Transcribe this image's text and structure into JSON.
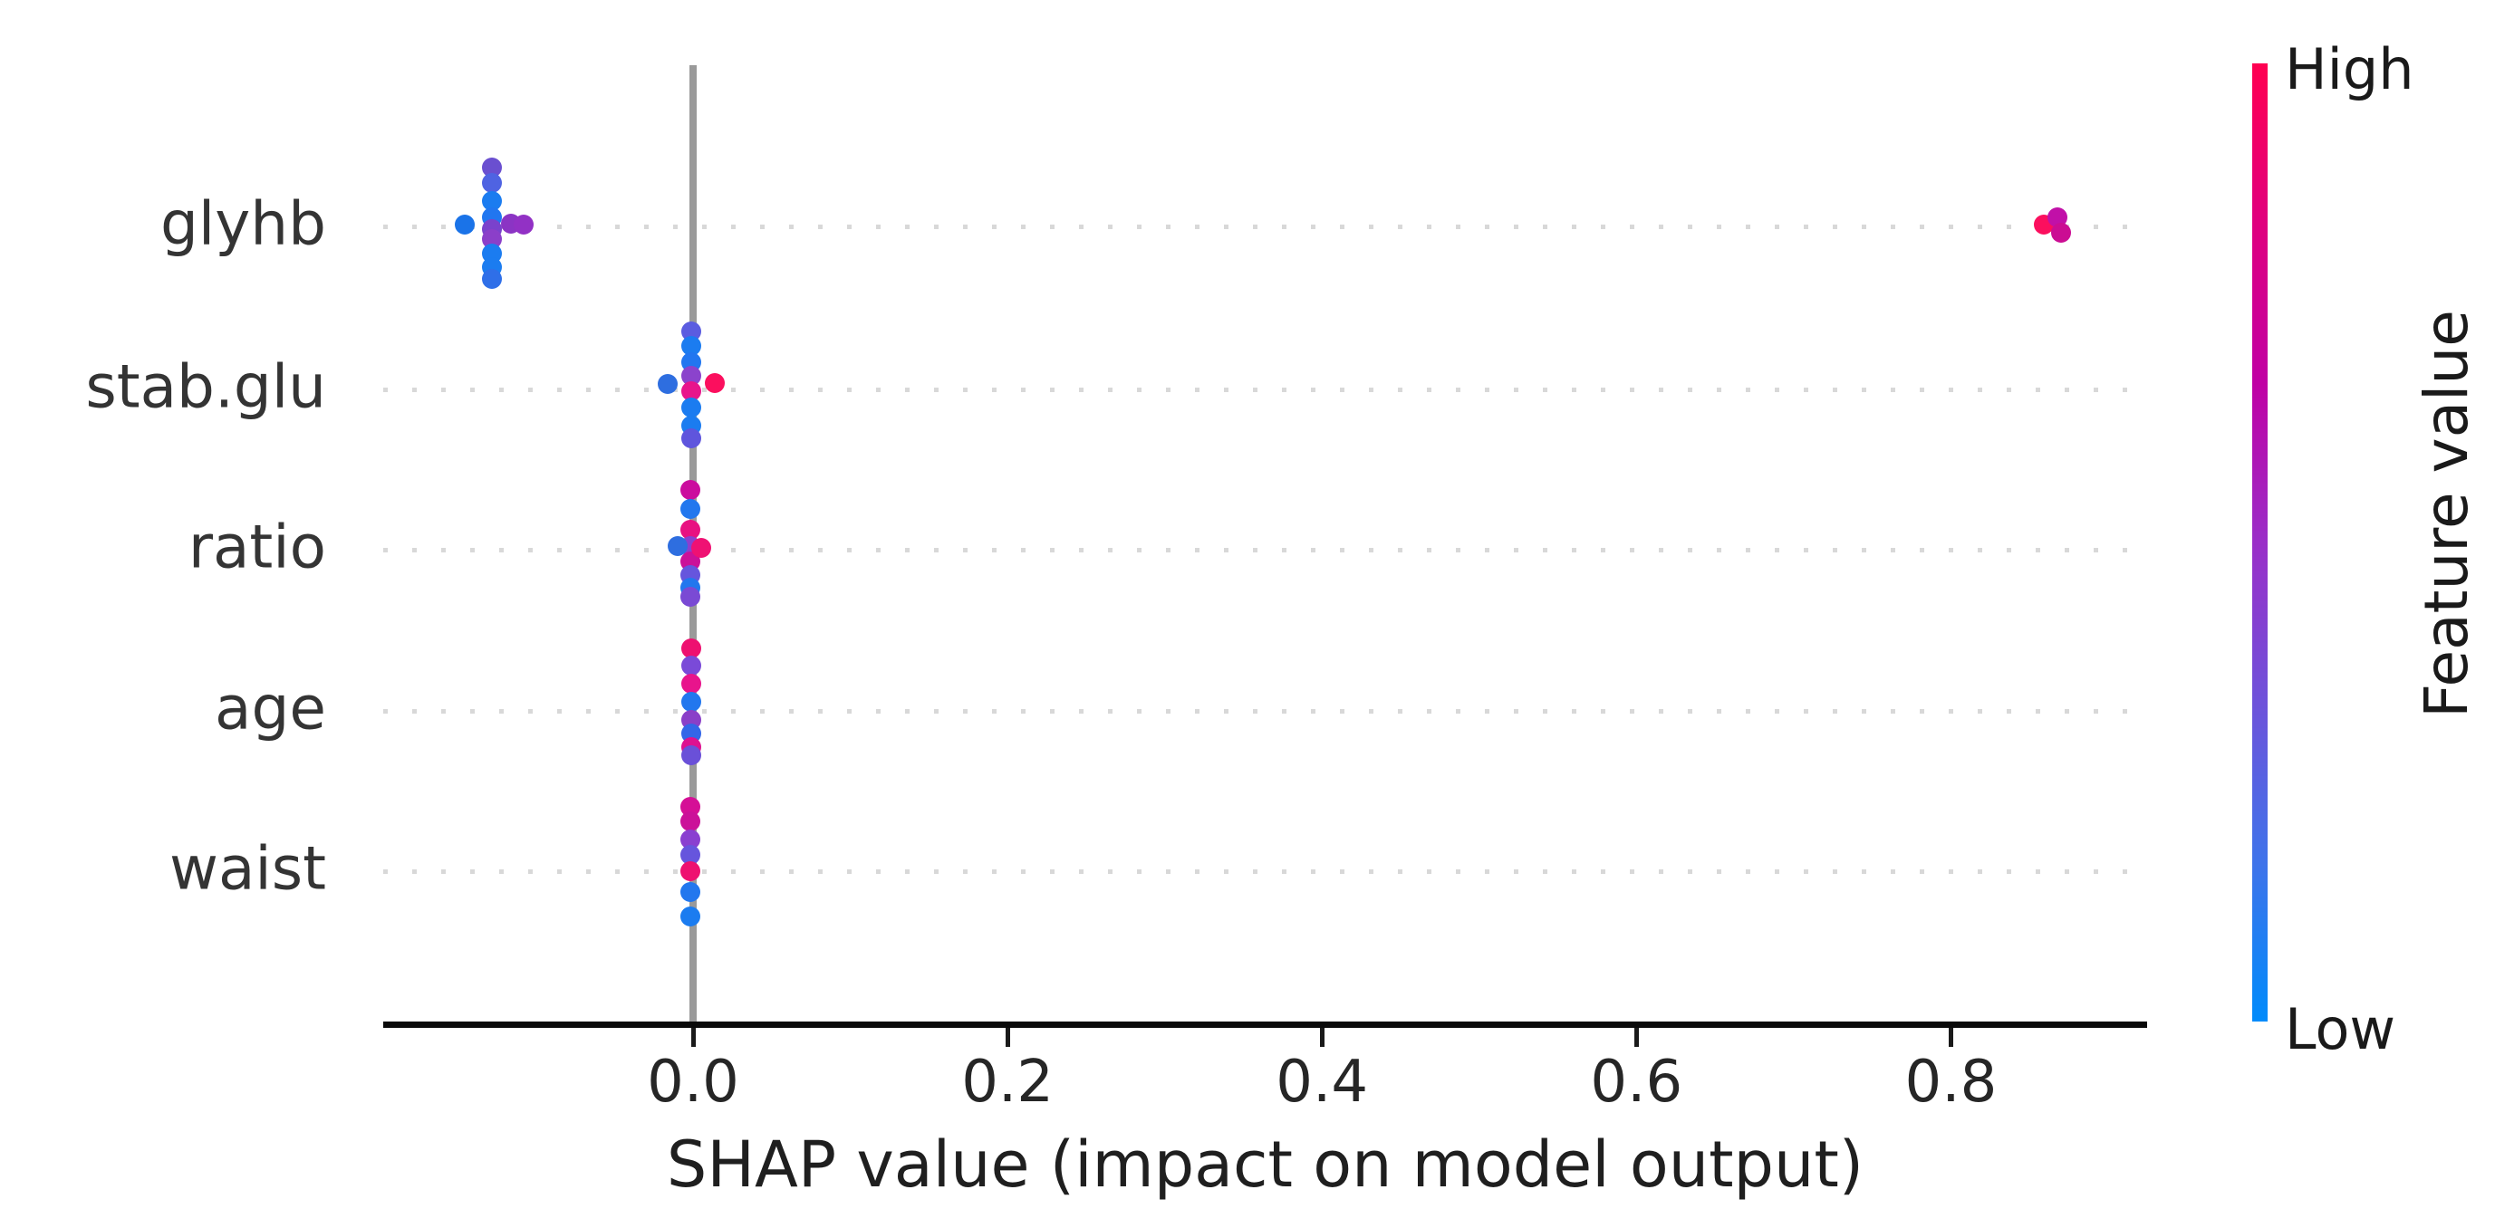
{
  "chart_data": {
    "type": "scatter",
    "variant": "shap_summary_beeswarm",
    "title": "",
    "xlabel": "SHAP value (impact on model output)",
    "ylabel": "",
    "x_ticks": [
      0.0,
      0.2,
      0.4,
      0.6,
      0.8
    ],
    "x_range": [
      -0.197,
      0.925
    ],
    "grid": "dotted-horizontal-per-feature-row",
    "zero_line": {
      "x": 0.0,
      "color": "#9a9a9a"
    },
    "legend": {
      "position": "right-colorbar",
      "title": "Feature value",
      "high_label": "High",
      "low_label": "Low",
      "high_color": "#ff0051",
      "mid_colors": [
        "#e0007e",
        "#c000a4",
        "#9a2ec8",
        "#6e52da",
        "#3f73ea"
      ],
      "low_color": "#008bfb"
    },
    "features": [
      {
        "label": "glyhb",
        "points": [
          {
            "x": -0.128,
            "dy": -65,
            "color": "#6a4fd0"
          },
          {
            "x": -0.128,
            "dy": -48,
            "color": "#4f63e2"
          },
          {
            "x": -0.128,
            "dy": -28,
            "color": "#1b7cf0"
          },
          {
            "x": -0.128,
            "dy": -10,
            "color": "#2176f0"
          },
          {
            "x": -0.128,
            "dy": 3,
            "color": "#7a42cc"
          },
          {
            "x": -0.128,
            "dy": 14,
            "color": "#8b3fc9"
          },
          {
            "x": -0.128,
            "dy": 30,
            "color": "#1b7cf0"
          },
          {
            "x": -0.128,
            "dy": 45,
            "color": "#1b7cf0"
          },
          {
            "x": -0.128,
            "dy": 58,
            "color": "#2f6fe8"
          },
          {
            "x": -0.145,
            "dy": -2,
            "color": "#1a73e8"
          },
          {
            "x": -0.116,
            "dy": -3,
            "color": "#8b34c4"
          },
          {
            "x": -0.108,
            "dy": -2,
            "color": "#9231c5"
          },
          {
            "x": 0.859,
            "dy": -2,
            "color": "#fb0f5e"
          },
          {
            "x": 0.868,
            "dy": -10,
            "color": "#c110a8"
          },
          {
            "x": 0.87,
            "dy": 7,
            "color": "#cb0d93"
          }
        ]
      },
      {
        "label": "stab.glu",
        "points": [
          {
            "x": -0.001,
            "dy": -64,
            "color": "#5b5ce0"
          },
          {
            "x": -0.001,
            "dy": -48,
            "color": "#1b7cf0"
          },
          {
            "x": -0.001,
            "dy": -30,
            "color": "#2176f0"
          },
          {
            "x": -0.001,
            "dy": -15,
            "color": "#8b43cc"
          },
          {
            "x": -0.001,
            "dy": 2,
            "color": "#e8148c"
          },
          {
            "x": -0.001,
            "dy": 20,
            "color": "#1b7cf0"
          },
          {
            "x": -0.001,
            "dy": 40,
            "color": "#1b7cf0"
          },
          {
            "x": -0.001,
            "dy": 54,
            "color": "#5f55dd"
          },
          {
            "x": -0.016,
            "dy": -6,
            "color": "#2e6ee0"
          },
          {
            "x": 0.014,
            "dy": -7,
            "color": "#fb0f5e"
          }
        ]
      },
      {
        "label": "ratio",
        "points": [
          {
            "x": -0.002,
            "dy": -66,
            "color": "#cb0d9e"
          },
          {
            "x": -0.002,
            "dy": -45,
            "color": "#2277ee"
          },
          {
            "x": -0.002,
            "dy": -22,
            "color": "#e81181"
          },
          {
            "x": -0.002,
            "dy": -4,
            "color": "#8a3fd0"
          },
          {
            "x": -0.002,
            "dy": 13,
            "color": "#cb1199"
          },
          {
            "x": -0.002,
            "dy": 28,
            "color": "#6655dd"
          },
          {
            "x": -0.002,
            "dy": 42,
            "color": "#2277ee"
          },
          {
            "x": -0.002,
            "dy": 52,
            "color": "#7a4ad4"
          },
          {
            "x": -0.01,
            "dy": -4,
            "color": "#2e6ee0"
          },
          {
            "x": 0.005,
            "dy": -2,
            "color": "#ef1173"
          }
        ]
      },
      {
        "label": "age",
        "points": [
          {
            "x": -0.001,
            "dy": -69,
            "color": "#ee1070"
          },
          {
            "x": -0.001,
            "dy": -50,
            "color": "#7a4ad8"
          },
          {
            "x": -0.001,
            "dy": -30,
            "color": "#e8148c"
          },
          {
            "x": -0.001,
            "dy": -10,
            "color": "#2277ee"
          },
          {
            "x": -0.001,
            "dy": 10,
            "color": "#8a3fc8"
          },
          {
            "x": -0.001,
            "dy": 25,
            "color": "#3366e8"
          },
          {
            "x": -0.001,
            "dy": 40,
            "color": "#dd1190"
          },
          {
            "x": -0.001,
            "dy": 49,
            "color": "#6a50d8"
          }
        ]
      },
      {
        "label": "waist",
        "points": [
          {
            "x": -0.002,
            "dy": -71,
            "color": "#d50f96"
          },
          {
            "x": -0.002,
            "dy": -55,
            "color": "#cb1199"
          },
          {
            "x": -0.002,
            "dy": -35,
            "color": "#8a3fd0"
          },
          {
            "x": -0.002,
            "dy": -18,
            "color": "#6655dd"
          },
          {
            "x": -0.002,
            "dy": 0,
            "color": "#ee1170"
          },
          {
            "x": -0.002,
            "dy": 23,
            "color": "#2277ee"
          },
          {
            "x": -0.002,
            "dy": 50,
            "color": "#1b7cf0"
          }
        ]
      }
    ]
  }
}
